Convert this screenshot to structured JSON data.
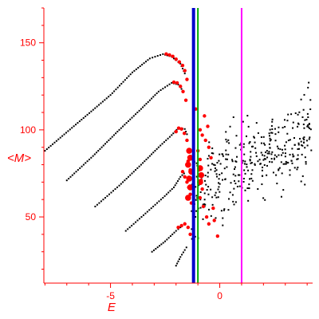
{
  "chart_data": {
    "type": "scatter",
    "title": "",
    "xlabel": "E",
    "ylabel": "<M>",
    "xlim": [
      -8.05,
      4.25
    ],
    "ylim": [
      12,
      170
    ],
    "xticks": [
      -5,
      0
    ],
    "yticks": [
      50,
      100,
      150
    ],
    "grid": false,
    "legend": "none",
    "colors": {
      "axis": "#ff0000",
      "branch_points": "#000000",
      "red_points": "#ff0000",
      "vline_blue": "#0000cc",
      "vline_green": "#00aa00",
      "vline_magenta": "#ff00ff"
    },
    "vlines": [
      {
        "x": -1.2,
        "color": "#0000cc"
      },
      {
        "x": -1.0,
        "color": "#00aa00"
      },
      {
        "x": 1.0,
        "color": "#ff00ff"
      }
    ],
    "branches": [
      {
        "points": [
          [
            -8.0,
            88
          ],
          [
            -6.5,
            104
          ],
          [
            -5.0,
            120
          ],
          [
            -4.0,
            133
          ],
          [
            -3.2,
            141
          ],
          [
            -2.6,
            143.5
          ],
          [
            -2.2,
            142
          ],
          [
            -1.8,
            138
          ],
          [
            -1.55,
            131
          ]
        ]
      },
      {
        "points": [
          [
            -7.0,
            71
          ],
          [
            -5.8,
            85
          ],
          [
            -4.6,
            100
          ],
          [
            -3.6,
            112
          ],
          [
            -2.8,
            122
          ],
          [
            -2.2,
            127
          ],
          [
            -1.9,
            126
          ],
          [
            -1.6,
            121
          ]
        ]
      },
      {
        "points": [
          [
            -5.7,
            56
          ],
          [
            -4.6,
            68
          ],
          [
            -3.6,
            80
          ],
          [
            -2.8,
            90
          ],
          [
            -2.2,
            97
          ],
          [
            -1.9,
            101
          ],
          [
            -1.6,
            100.5
          ],
          [
            -1.45,
            96
          ]
        ]
      },
      {
        "points": [
          [
            -4.3,
            42
          ],
          [
            -3.4,
            52
          ],
          [
            -2.6,
            61
          ],
          [
            -2.1,
            67
          ],
          [
            -1.8,
            73
          ],
          [
            -1.55,
            76
          ]
        ]
      },
      {
        "points": [
          [
            -3.1,
            30
          ],
          [
            -2.5,
            36
          ],
          [
            -2.0,
            42
          ],
          [
            -1.7,
            45
          ]
        ]
      },
      {
        "points": [
          [
            -2.0,
            22
          ],
          [
            -1.8,
            27
          ],
          [
            -1.6,
            31
          ],
          [
            -1.45,
            34
          ]
        ]
      }
    ],
    "red_points": [
      [
        -2.45,
        143.6
      ],
      [
        -2.3,
        143
      ],
      [
        -2.15,
        142.2
      ],
      [
        -2.0,
        140.6
      ],
      [
        -1.85,
        139
      ],
      [
        -1.7,
        137
      ],
      [
        -1.6,
        134
      ],
      [
        -1.5,
        129
      ],
      [
        -2.1,
        127.4
      ],
      [
        -1.95,
        127
      ],
      [
        -1.8,
        125
      ],
      [
        -1.68,
        122
      ],
      [
        -1.55,
        117
      ],
      [
        -2.0,
        99
      ],
      [
        -1.88,
        101
      ],
      [
        -1.75,
        100.5
      ],
      [
        -1.62,
        98
      ],
      [
        -1.5,
        94
      ],
      [
        -1.4,
        88
      ],
      [
        -1.45,
        82
      ],
      [
        -1.35,
        77
      ],
      [
        -1.7,
        76
      ],
      [
        -1.6,
        73
      ],
      [
        -1.5,
        70
      ],
      [
        -1.42,
        67
      ],
      [
        -1.35,
        63
      ],
      [
        -1.3,
        58
      ],
      [
        -1.9,
        44
      ],
      [
        -1.75,
        45
      ],
      [
        -1.6,
        46
      ],
      [
        -1.45,
        44
      ],
      [
        -1.35,
        40
      ],
      [
        -1.0,
        88
      ],
      [
        -0.9,
        83
      ],
      [
        -0.95,
        77
      ],
      [
        -0.85,
        71
      ],
      [
        -0.8,
        66
      ],
      [
        -0.9,
        61
      ],
      [
        -0.75,
        56
      ],
      [
        -0.6,
        50
      ],
      [
        -0.5,
        46
      ],
      [
        -0.9,
        100
      ],
      [
        -0.8,
        97
      ],
      [
        -0.65,
        94
      ],
      [
        -0.55,
        102
      ],
      [
        -0.4,
        84
      ],
      [
        -0.3,
        55
      ],
      [
        -0.25,
        48
      ],
      [
        -0.1,
        39
      ],
      [
        -1.1,
        112
      ],
      [
        -0.7,
        108
      ],
      [
        -0.5,
        90
      ]
    ],
    "red_large_points": [
      [
        -1.4,
        88
      ],
      [
        -1.35,
        84
      ],
      [
        -1.45,
        80
      ],
      [
        -1.3,
        76
      ],
      [
        -1.4,
        72
      ],
      [
        -1.35,
        67
      ],
      [
        -1.45,
        61
      ],
      [
        -0.9,
        78
      ],
      [
        -0.85,
        74
      ],
      [
        -0.9,
        70
      ]
    ],
    "noise_points": {
      "count": 360,
      "x_range": [
        -1.3,
        4.2
      ],
      "y_center": 75,
      "y_slope": 7,
      "y_spread": 17
    }
  }
}
